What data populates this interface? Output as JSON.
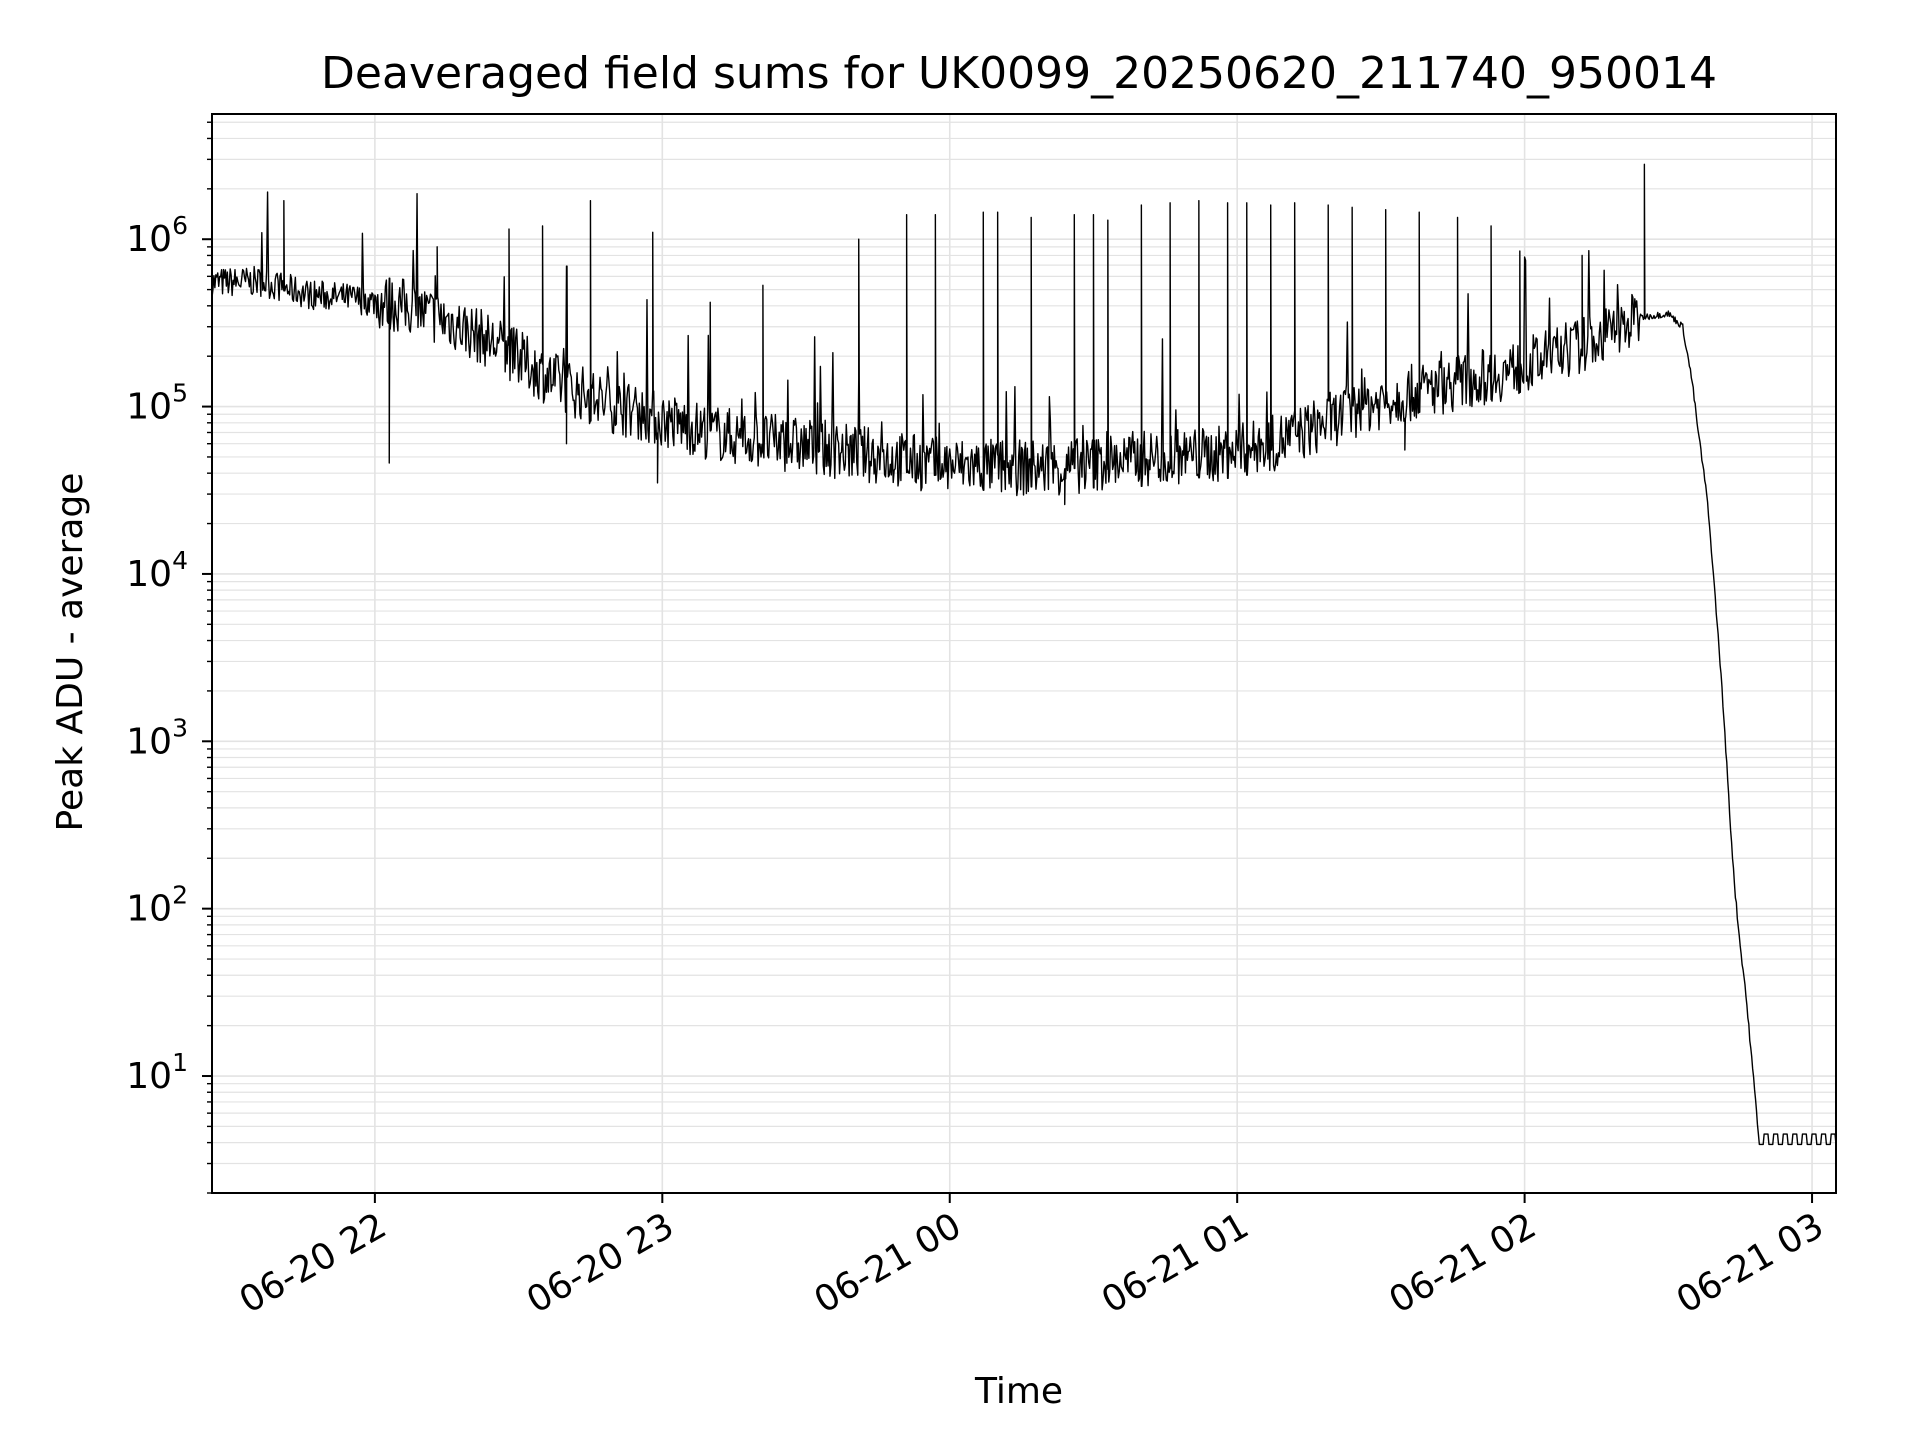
{
  "chart_data": {
    "type": "line",
    "title": "Deaveraged field sums for UK0099_20250620_211740_950014",
    "xlabel": "Time",
    "ylabel": "Peak ADU - average",
    "yscale": "log",
    "xlim": [
      "2025-06-20 21:26",
      "2025-06-21 03:05"
    ],
    "ylim": [
      2,
      5600000
    ],
    "grid": true,
    "legend": "none",
    "line_color": "#000000",
    "x_ticks": [
      {
        "value": "2025-06-20 22:00",
        "label": "06-20 22"
      },
      {
        "value": "2025-06-20 23:00",
        "label": "06-20 23"
      },
      {
        "value": "2025-06-21 00:00",
        "label": "06-21 00"
      },
      {
        "value": "2025-06-21 01:00",
        "label": "06-21 01"
      },
      {
        "value": "2025-06-21 02:00",
        "label": "06-21 02"
      },
      {
        "value": "2025-06-21 03:00",
        "label": "06-21 03"
      }
    ],
    "y_ticks": [
      {
        "value": 10,
        "base": "10",
        "exp": "1"
      },
      {
        "value": 100,
        "base": "10",
        "exp": "2"
      },
      {
        "value": 1000,
        "base": "10",
        "exp": "3"
      },
      {
        "value": 10000,
        "base": "10",
        "exp": "4"
      },
      {
        "value": 100000,
        "base": "10",
        "exp": "5"
      },
      {
        "value": 1000000,
        "base": "10",
        "exp": "6"
      }
    ],
    "baseline": {
      "time": "2025-06-20 21:26",
      "value": 550000
    },
    "spikes": [
      {
        "time": "2025-06-20 21:41",
        "value": 1700000
      },
      {
        "time": "2025-06-20 22:03",
        "value": 46000
      },
      {
        "time": "2025-06-20 22:13",
        "value": 900000
      },
      {
        "time": "2025-06-20 22:28",
        "value": 1150000
      },
      {
        "time": "2025-06-20 22:35",
        "value": 1200000
      },
      {
        "time": "2025-06-20 22:40",
        "value": 60000
      },
      {
        "time": "2025-06-20 22:45",
        "value": 1700000
      },
      {
        "time": "2025-06-20 22:58",
        "value": 1100000
      },
      {
        "time": "2025-06-20 22:59",
        "value": 35000
      },
      {
        "time": "2025-06-20 23:10",
        "value": 420000
      },
      {
        "time": "2025-06-20 23:21",
        "value": 530000
      },
      {
        "time": "2025-06-20 23:41",
        "value": 1000000
      },
      {
        "time": "2025-06-20 23:51",
        "value": 1400000
      },
      {
        "time": "2025-06-20 23:57",
        "value": 1400000
      },
      {
        "time": "2025-06-21 00:07",
        "value": 1450000
      },
      {
        "time": "2025-06-21 00:10",
        "value": 1450000
      },
      {
        "time": "2025-06-21 00:17",
        "value": 1350000
      },
      {
        "time": "2025-06-21 00:24",
        "value": 26000
      },
      {
        "time": "2025-06-21 00:26",
        "value": 1400000
      },
      {
        "time": "2025-06-21 00:30",
        "value": 1400000
      },
      {
        "time": "2025-06-21 00:33",
        "value": 1300000
      },
      {
        "time": "2025-06-21 00:40",
        "value": 1600000
      },
      {
        "time": "2025-06-21 00:46",
        "value": 1650000
      },
      {
        "time": "2025-06-21 00:52",
        "value": 1700000
      },
      {
        "time": "2025-06-21 00:58",
        "value": 1650000
      },
      {
        "time": "2025-06-21 01:02",
        "value": 1650000
      },
      {
        "time": "2025-06-21 01:07",
        "value": 1600000
      },
      {
        "time": "2025-06-21 01:12",
        "value": 1650000
      },
      {
        "time": "2025-06-21 01:19",
        "value": 1600000
      },
      {
        "time": "2025-06-21 01:24",
        "value": 1550000
      },
      {
        "time": "2025-06-21 01:31",
        "value": 1500000
      },
      {
        "time": "2025-06-21 01:35",
        "value": 55000
      },
      {
        "time": "2025-06-21 01:38",
        "value": 1450000
      },
      {
        "time": "2025-06-21 01:46",
        "value": 1350000
      },
      {
        "time": "2025-06-21 01:53",
        "value": 1200000
      },
      {
        "time": "2025-06-21 01:59",
        "value": 850000
      },
      {
        "time": "2025-06-21 02:12",
        "value": 800000
      },
      {
        "time": "2025-06-21 02:25",
        "value": 2800000
      }
    ],
    "series": [
      {
        "x": [
          "2025-06-20 21:26",
          "2025-06-20 21:36",
          "2025-06-20 21:46",
          "2025-06-20 21:56",
          "2025-06-20 22:06",
          "2025-06-20 22:16",
          "2025-06-20 22:26",
          "2025-06-20 22:36",
          "2025-06-20 22:46",
          "2025-06-20 22:56",
          "2025-06-20 23:06",
          "2025-06-20 23:16",
          "2025-06-20 23:26",
          "2025-06-20 23:36",
          "2025-06-20 23:46",
          "2025-06-20 23:56",
          "2025-06-21 00:06",
          "2025-06-21 00:16",
          "2025-06-21 00:26",
          "2025-06-21 00:36",
          "2025-06-21 00:46",
          "2025-06-21 00:56",
          "2025-06-21 01:06",
          "2025-06-21 01:16",
          "2025-06-21 01:26",
          "2025-06-21 01:36",
          "2025-06-21 01:46",
          "2025-06-21 01:56",
          "2025-06-21 02:06",
          "2025-06-21 02:16",
          "2025-06-21 02:24",
          "2025-06-21 02:30",
          "2025-06-21 02:33",
          "2025-06-21 02:35",
          "2025-06-21 02:36",
          "2025-06-21 02:38",
          "2025-06-21 02:39",
          "2025-06-21 02:40",
          "2025-06-21 02:41",
          "2025-06-21 02:42",
          "2025-06-21 02:43",
          "2025-06-21 02:44",
          "2025-06-21 02:45",
          "2025-06-21 02:46",
          "2025-06-21 02:49",
          "2025-06-21 03:00",
          "2025-06-21 03:05"
        ],
        "y": [
          550000,
          560000,
          470000,
          440000,
          400000,
          320000,
          230000,
          150000,
          110000,
          90000,
          75000,
          65000,
          60000,
          55000,
          50000,
          45000,
          44000,
          43000,
          44000,
          48000,
          50000,
          52000,
          58000,
          75000,
          100000,
          120000,
          140000,
          160000,
          200000,
          260000,
          340000,
          360000,
          300000,
          140000,
          80000,
          30000,
          14000,
          6000,
          2500,
          900,
          300,
          120,
          60,
          35,
          4,
          4,
          4
        ]
      }
    ]
  }
}
